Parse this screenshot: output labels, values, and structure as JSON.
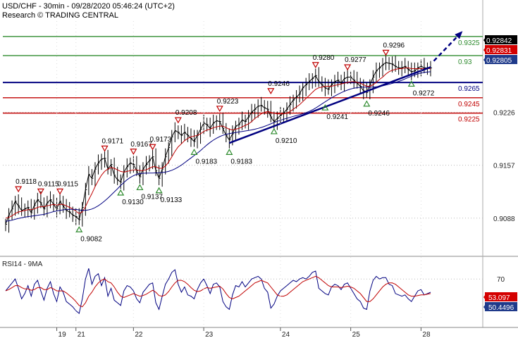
{
  "header": {
    "symbol_line": "USD/CHF - 30min - 09/28/2020 05:46:24 (UTC+2)",
    "research_line": "Research © TRADING CENTRAL"
  },
  "colors": {
    "green_level": "#2e8b2e",
    "red_level": "#c00000",
    "blue_level": "#000080",
    "trend": "#000080",
    "ma": "#c00000",
    "price": "#000000",
    "up_marker": "#2e8b2e",
    "down_marker": "#c00000",
    "tag_price": "#000000",
    "tag_red": "#d40000",
    "tag_blue": "#1f3a8a"
  },
  "chart_data": [
    {
      "type": "line",
      "title": "USD/CHF - 30min - 09/28/2020 05:46:24 (UTC+2)",
      "x_labels": [
        "19",
        "21",
        "22",
        "23",
        "24",
        "25",
        "28"
      ],
      "y_ticks": [
        "0.9226",
        "0.9157",
        "0.9088"
      ],
      "ylim": [
        0.904,
        0.9345
      ],
      "levels": [
        {
          "value": 0.9325,
          "label": "0.9325",
          "color": "green"
        },
        {
          "value": 0.93,
          "label": "0.93",
          "color": "green"
        },
        {
          "value": 0.9265,
          "label": "0.9265",
          "color": "blue"
        },
        {
          "value": 0.9245,
          "label": "0.9245",
          "color": "red"
        },
        {
          "value": 0.9225,
          "label": "0.9225",
          "color": "red"
        }
      ],
      "price_tags": [
        {
          "label": "0.92842",
          "color": "price"
        },
        {
          "label": "0.92831",
          "color": "red"
        },
        {
          "label": "0.92805",
          "color": "blue"
        }
      ],
      "highs": [
        {
          "t": 4,
          "label": "0.9118"
        },
        {
          "t": 11,
          "label": "0.9115"
        },
        {
          "t": 17,
          "label": "0.9115"
        },
        {
          "t": 31,
          "label": "0.9171"
        },
        {
          "t": 40,
          "label": "0.9167"
        },
        {
          "t": 46,
          "label": "0.9173"
        },
        {
          "t": 54,
          "label": "0.9208"
        },
        {
          "t": 67,
          "label": "0.9223"
        },
        {
          "t": 83,
          "label": "0.9246"
        },
        {
          "t": 97,
          "label": "0.9280"
        },
        {
          "t": 107,
          "label": "0.9277"
        },
        {
          "t": 119,
          "label": "0.9296"
        }
      ],
      "lows": [
        {
          "t": 23,
          "label": "0.9082"
        },
        {
          "t": 36,
          "label": "0.9130"
        },
        {
          "t": 42,
          "label": "0.9137"
        },
        {
          "t": 48,
          "label": "0.9133"
        },
        {
          "t": 59,
          "label": "0.9183"
        },
        {
          "t": 70,
          "label": "0.9183"
        },
        {
          "t": 84,
          "label": "0.9210"
        },
        {
          "t": 100,
          "label": "0.9241"
        },
        {
          "t": 113,
          "label": "0.9246"
        },
        {
          "t": 127,
          "label": "0.9272"
        }
      ],
      "trendline": [
        {
          "t": 70,
          "y": 0.9186
        },
        {
          "t": 133,
          "y": 0.9285
        }
      ],
      "projection": [
        {
          "t": 134,
          "y": 0.9293
        },
        {
          "t": 143,
          "y": 0.9332
        }
      ],
      "series": [
        {
          "style": "price",
          "values": [
            0.908,
            0.9092,
            0.91,
            0.911,
            0.9104,
            0.9098,
            0.91,
            0.9102,
            0.9095,
            0.9105,
            0.9112,
            0.9108,
            0.91,
            0.9108,
            0.9112,
            0.9106,
            0.91,
            0.911,
            0.9104,
            0.9098,
            0.9096,
            0.9092,
            0.909,
            0.9086,
            0.9102,
            0.9125,
            0.9145,
            0.914,
            0.9152,
            0.916,
            0.9165,
            0.9166,
            0.9152,
            0.9158,
            0.9144,
            0.9138,
            0.9135,
            0.9148,
            0.9155,
            0.916,
            0.9158,
            0.915,
            0.9142,
            0.9152,
            0.9158,
            0.9163,
            0.9168,
            0.915,
            0.914,
            0.9152,
            0.9168,
            0.918,
            0.9194,
            0.9202,
            0.92,
            0.9196,
            0.92,
            0.9196,
            0.9192,
            0.9188,
            0.9196,
            0.9204,
            0.9212,
            0.921,
            0.9205,
            0.9212,
            0.9215,
            0.9214,
            0.9205,
            0.9196,
            0.919,
            0.9198,
            0.9208,
            0.921,
            0.9216,
            0.9214,
            0.922,
            0.9226,
            0.923,
            0.9234,
            0.9235,
            0.9232,
            0.923,
            0.922,
            0.9214,
            0.9218,
            0.9222,
            0.9225,
            0.923,
            0.9236,
            0.9242,
            0.9246,
            0.925,
            0.9258,
            0.9262,
            0.9266,
            0.927,
            0.9274,
            0.9266,
            0.9262,
            0.9258,
            0.9256,
            0.9262,
            0.9266,
            0.9268,
            0.9264,
            0.927,
            0.9272,
            0.9272,
            0.9268,
            0.9264,
            0.926,
            0.9254,
            0.9252,
            0.9262,
            0.9272,
            0.928,
            0.9284,
            0.9288,
            0.9291,
            0.929,
            0.9289,
            0.9286,
            0.9284,
            0.9284,
            0.9286,
            0.9282,
            0.9279,
            0.928,
            0.9284,
            0.9286,
            0.9284,
            0.9284,
            0.9284
          ]
        },
        {
          "style": "ma",
          "values": [
            0.9088,
            0.9089,
            0.9091,
            0.9094,
            0.9096,
            0.9097,
            0.9098,
            0.9099,
            0.9099,
            0.91,
            0.9102,
            0.9103,
            0.9103,
            0.9104,
            0.9105,
            0.9106,
            0.9105,
            0.9106,
            0.9106,
            0.9104,
            0.9102,
            0.91,
            0.9097,
            0.9094,
            0.9096,
            0.9103,
            0.9112,
            0.912,
            0.9129,
            0.9137,
            0.9144,
            0.9149,
            0.9152,
            0.9154,
            0.9153,
            0.9151,
            0.9149,
            0.9148,
            0.9149,
            0.915,
            0.9151,
            0.9151,
            0.915,
            0.915,
            0.9151,
            0.9153,
            0.9155,
            0.9155,
            0.9153,
            0.9153,
            0.9156,
            0.9161,
            0.9168,
            0.9175,
            0.9181,
            0.9185,
            0.9189,
            0.9192,
            0.9194,
            0.9195,
            0.9196,
            0.9198,
            0.9201,
            0.9203,
            0.9204,
            0.9206,
            0.9207,
            0.9208,
            0.9208,
            0.9206,
            0.9204,
            0.9203,
            0.9204,
            0.9205,
            0.9207,
            0.9209,
            0.9211,
            0.9214,
            0.9218,
            0.9221,
            0.9224,
            0.9226,
            0.9227,
            0.9226,
            0.9225,
            0.9224,
            0.9224,
            0.9224,
            0.9225,
            0.9227,
            0.923,
            0.9233,
            0.9236,
            0.924,
            0.9244,
            0.9248,
            0.9252,
            0.9256,
            0.9258,
            0.9259,
            0.926,
            0.926,
            0.926,
            0.9261,
            0.9262,
            0.9263,
            0.9264,
            0.9265,
            0.9266,
            0.9266,
            0.9265,
            0.9264,
            0.9262,
            0.926,
            0.926,
            0.9262,
            0.9265,
            0.9269,
            0.9272,
            0.9276,
            0.9279,
            0.9281,
            0.9282,
            0.9283,
            0.9283,
            0.9284,
            0.9284,
            0.9283,
            0.9283,
            0.9283,
            0.9283,
            0.9283,
            0.9283,
            0.9283
          ]
        }
      ]
    },
    {
      "type": "line",
      "title": "RSI14 - 9MA",
      "y_ticks": [
        "70"
      ],
      "ylim": [
        0,
        100
      ],
      "value_tags": [
        {
          "label": "53.097",
          "color": "red"
        },
        {
          "label": "50.4496",
          "color": "blue"
        }
      ],
      "series": [
        {
          "style": "rsi",
          "values": [
            52,
            58,
            64,
            70,
            56,
            40,
            48,
            60,
            44,
            62,
            68,
            52,
            38,
            56,
            66,
            48,
            36,
            58,
            50,
            36,
            32,
            28,
            22,
            18,
            40,
            70,
            86,
            62,
            74,
            78,
            60,
            72,
            44,
            56,
            38,
            34,
            30,
            52,
            60,
            58,
            52,
            40,
            34,
            50,
            56,
            62,
            64,
            34,
            24,
            44,
            62,
            70,
            80,
            84,
            62,
            50,
            58,
            46,
            44,
            40,
            54,
            64,
            70,
            60,
            48,
            62,
            64,
            58,
            36,
            28,
            24,
            46,
            60,
            58,
            66,
            58,
            64,
            70,
            72,
            74,
            70,
            56,
            50,
            26,
            32,
            44,
            52,
            56,
            60,
            64,
            68,
            66,
            70,
            72,
            70,
            74,
            80,
            82,
            56,
            52,
            48,
            46,
            58,
            62,
            60,
            54,
            62,
            64,
            56,
            48,
            40,
            36,
            26,
            24,
            52,
            68,
            74,
            70,
            72,
            72,
            62,
            60,
            48,
            46,
            44,
            46,
            40,
            36,
            44,
            52,
            54,
            46,
            48,
            50
          ]
        },
        {
          "style": "rsi_ma",
          "values": [
            52,
            54,
            57,
            60,
            60,
            57,
            55,
            55,
            53,
            54,
            57,
            57,
            54,
            54,
            57,
            55,
            52,
            52,
            52,
            49,
            45,
            41,
            36,
            30,
            28,
            34,
            44,
            50,
            58,
            64,
            68,
            70,
            66,
            64,
            58,
            50,
            44,
            42,
            44,
            46,
            48,
            46,
            44,
            45,
            47,
            50,
            53,
            50,
            45,
            44,
            46,
            51,
            58,
            64,
            68,
            68,
            66,
            62,
            57,
            53,
            51,
            52,
            55,
            57,
            56,
            57,
            58,
            59,
            55,
            48,
            42,
            40,
            42,
            44,
            48,
            52,
            56,
            60,
            64,
            66,
            68,
            66,
            64,
            58,
            52,
            46,
            44,
            44,
            46,
            50,
            54,
            58,
            62,
            66,
            68,
            70,
            72,
            74,
            72,
            68,
            64,
            60,
            58,
            58,
            58,
            57,
            58,
            59,
            58,
            56,
            52,
            48,
            42,
            36,
            36,
            40,
            46,
            52,
            58,
            62,
            64,
            64,
            62,
            58,
            54,
            50,
            46,
            44,
            44,
            45,
            46,
            46,
            47,
            48
          ]
        }
      ]
    }
  ]
}
